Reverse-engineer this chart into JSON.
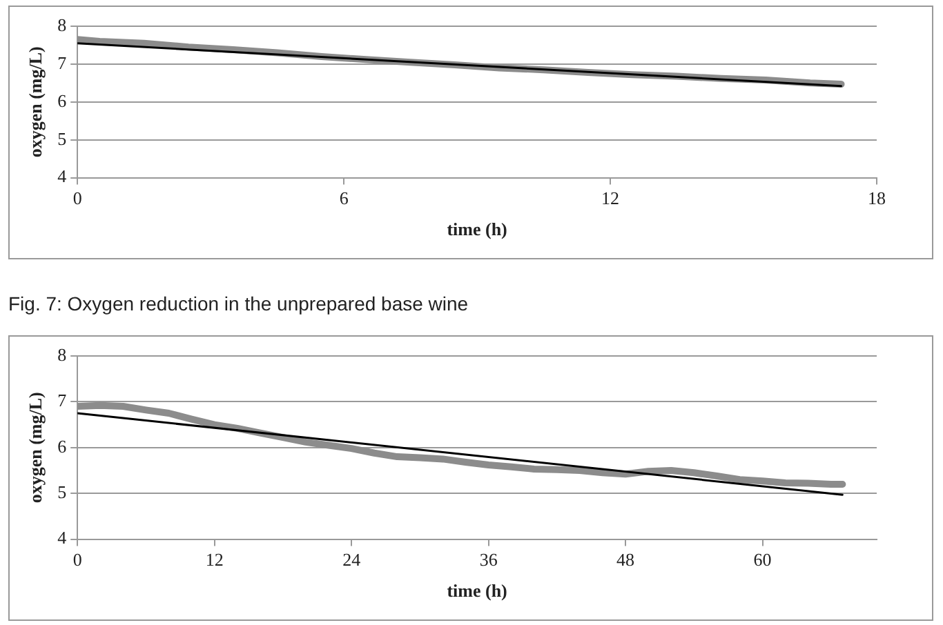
{
  "chart_data": [
    {
      "type": "line",
      "xlabel": "time (h)",
      "ylabel": "oxygen (mg/L)",
      "xlim": [
        0,
        18
      ],
      "xticks": [
        0,
        6,
        12,
        18
      ],
      "ylim": [
        4,
        8
      ],
      "yticks": [
        4,
        5,
        6,
        7,
        8
      ],
      "grid": "y",
      "legend": false,
      "annotations": [
        "Fig. 7: Oxygen reduction in the unprepared base wine"
      ],
      "series": [
        {
          "color": "#8c8c8c",
          "x": [
            0,
            0.5,
            1.5,
            2.5,
            3.5,
            4.5,
            5.5,
            6.5,
            7.5,
            8.5,
            9.5,
            10.5,
            11.5,
            12.5,
            13.5,
            14.5,
            15.5,
            16.5,
            17.2
          ],
          "values": [
            7.65,
            7.6,
            7.55,
            7.45,
            7.38,
            7.3,
            7.2,
            7.12,
            7.05,
            6.98,
            6.9,
            6.85,
            6.78,
            6.72,
            6.68,
            6.62,
            6.58,
            6.5,
            6.47
          ]
        },
        {
          "color": "#000000",
          "x": [
            0,
            17.2
          ],
          "values": [
            7.55,
            6.42
          ]
        }
      ]
    },
    {
      "type": "line",
      "xlabel": "time (h)",
      "ylabel": "oxygen (mg/L)",
      "xlim": [
        0,
        70
      ],
      "xticks": [
        0,
        12,
        24,
        36,
        48,
        60
      ],
      "ylim": [
        4,
        8
      ],
      "yticks": [
        4,
        5,
        6,
        7,
        8
      ],
      "grid": "y",
      "legend": false,
      "series": [
        {
          "color": "#8c8c8c",
          "x": [
            0,
            2,
            4,
            6,
            8,
            10,
            12,
            14,
            16,
            18,
            20,
            22,
            24,
            26,
            28,
            30,
            32,
            34,
            36,
            38,
            40,
            42,
            44,
            46,
            48,
            50,
            52,
            54,
            56,
            58,
            60,
            62,
            64,
            66,
            67
          ],
          "values": [
            6.9,
            6.92,
            6.9,
            6.82,
            6.75,
            6.62,
            6.5,
            6.42,
            6.32,
            6.22,
            6.12,
            6.05,
            5.98,
            5.88,
            5.8,
            5.78,
            5.75,
            5.68,
            5.62,
            5.58,
            5.53,
            5.52,
            5.5,
            5.45,
            5.42,
            5.48,
            5.5,
            5.45,
            5.38,
            5.3,
            5.27,
            5.23,
            5.22,
            5.2,
            5.2
          ]
        },
        {
          "color": "#000000",
          "x": [
            0,
            67
          ],
          "values": [
            6.75,
            4.97
          ]
        }
      ]
    }
  ]
}
